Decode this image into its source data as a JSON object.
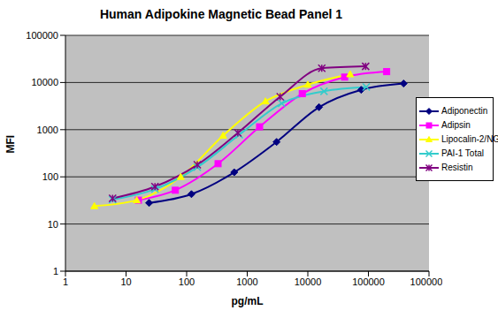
{
  "chart_data": {
    "type": "line",
    "title": "Human Adipokine Magnetic Bead Panel 1",
    "x_label": "pg/mL",
    "y_label": "MFI",
    "log": true,
    "grid": true,
    "legend": "right",
    "xlim": [
      1,
      1000000
    ],
    "xticks": [
      1,
      10,
      100,
      1000,
      10000,
      100000,
      1000000
    ],
    "ylim": [
      1,
      100000
    ],
    "yticks": [
      1,
      10,
      100,
      1000,
      10000,
      100000
    ],
    "series": [
      {
        "name": "Adiponectin",
        "color": "#000080",
        "marker": "diamond",
        "line_style": "solid",
        "x": [
          24,
          120,
          610,
          3050,
          15300,
          76000,
          381000
        ],
        "values": [
          28,
          43,
          125,
          550,
          3000,
          7000,
          9500
        ]
      },
      {
        "name": "Adipsin",
        "color": "#FF00FF",
        "marker": "square",
        "line_style": "solid",
        "x": [
          16,
          65,
          330,
          1600,
          8100,
          40500,
          200000
        ],
        "values": [
          32,
          52,
          190,
          1150,
          5800,
          13000,
          17000
        ]
      },
      {
        "name": "Lipocalin-2/NGAL",
        "color": "#FFFF00",
        "marker": "triangle",
        "line_style": "solid",
        "x": [
          3,
          15,
          80,
          400,
          2000,
          10000,
          50000
        ],
        "values": [
          24,
          32,
          100,
          750,
          4000,
          9000,
          15000
        ]
      },
      {
        "name": "PAI-1 Total",
        "color": "#33CCCC",
        "marker": "x",
        "line_style": "solid",
        "x": [
          6,
          30,
          150,
          740,
          3700,
          18500,
          92000
        ],
        "values": [
          33,
          55,
          160,
          780,
          3600,
          6500,
          8000
        ]
      },
      {
        "name": "Resistin",
        "color": "#800080",
        "marker": "star",
        "line_style": "solid",
        "x": [
          6,
          30,
          150,
          700,
          3500,
          17000,
          90000
        ],
        "values": [
          35,
          62,
          180,
          850,
          5000,
          20000,
          22000
        ]
      }
    ]
  }
}
